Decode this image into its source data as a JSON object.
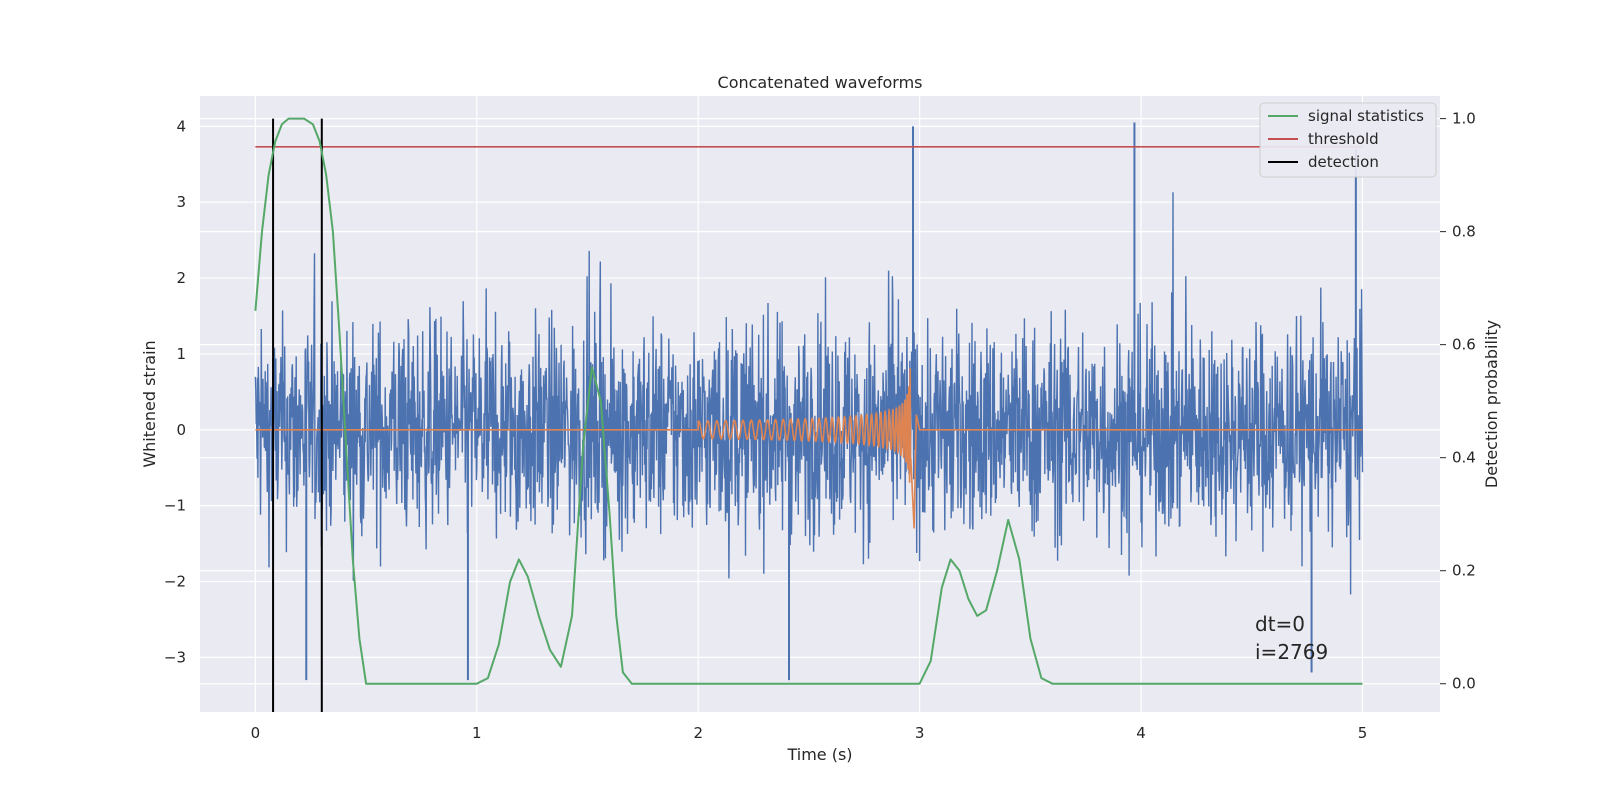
{
  "chart_data": {
    "type": "line",
    "title": "Concatenated waveforms",
    "xlabel": "Time (s)",
    "ylabel": "Whitened strain",
    "y2label": "Detection probability",
    "xlim": [
      -0.25,
      5.35
    ],
    "ylim": [
      -3.72,
      4.4
    ],
    "y2lim": [
      -0.05,
      1.04
    ],
    "xticks": [
      0,
      1,
      2,
      3,
      4,
      5
    ],
    "xtick_labels": [
      "0",
      "1",
      "2",
      "3",
      "4",
      "5"
    ],
    "yticks": [
      4,
      3,
      2,
      1,
      0,
      -1,
      -2,
      -3
    ],
    "ytick_labels": [
      "4",
      "3",
      "2",
      "1",
      "0",
      "−1",
      "−2",
      "−3"
    ],
    "y2ticks": [
      1.0,
      0.8,
      0.6,
      0.4,
      0.2,
      0.0
    ],
    "y2tick_labels": [
      "1.0",
      "0.8",
      "0.6",
      "0.4",
      "0.2",
      "0.0"
    ],
    "grid": true,
    "legend_position": "top-right",
    "legend": [
      "signal statistics",
      "threshold",
      "detection"
    ],
    "colors": {
      "strain": "#4c72b0",
      "injection": "#dd8452",
      "signal": "#55a868",
      "threshold": "#c44e52",
      "detection": "#000000",
      "background": "#eaeaf2",
      "grid": "#ffffff"
    },
    "series": [
      {
        "name": "signal statistics",
        "axis": "right",
        "x": [
          0.0,
          0.03,
          0.06,
          0.09,
          0.12,
          0.15,
          0.18,
          0.22,
          0.26,
          0.29,
          0.32,
          0.35,
          0.38,
          0.41,
          0.44,
          0.47,
          0.5,
          0.6,
          0.8,
          1.0,
          1.05,
          1.1,
          1.15,
          1.19,
          1.23,
          1.28,
          1.33,
          1.38,
          1.43,
          1.48,
          1.52,
          1.56,
          1.6,
          1.63,
          1.66,
          1.7,
          2.0,
          2.5,
          2.9,
          3.0,
          3.05,
          3.1,
          3.14,
          3.18,
          3.22,
          3.26,
          3.3,
          3.35,
          3.4,
          3.45,
          3.5,
          3.55,
          3.6,
          3.9,
          4.4,
          5.0
        ],
        "values": [
          0.66,
          0.8,
          0.9,
          0.96,
          0.99,
          1.0,
          1.0,
          1.0,
          0.99,
          0.96,
          0.9,
          0.8,
          0.62,
          0.42,
          0.22,
          0.08,
          0.0,
          0.0,
          0.0,
          0.0,
          0.01,
          0.07,
          0.18,
          0.22,
          0.19,
          0.12,
          0.06,
          0.03,
          0.12,
          0.42,
          0.56,
          0.5,
          0.3,
          0.12,
          0.02,
          0.0,
          0.0,
          0.0,
          0.0,
          0.0,
          0.04,
          0.17,
          0.22,
          0.2,
          0.15,
          0.12,
          0.13,
          0.2,
          0.29,
          0.22,
          0.08,
          0.01,
          0.0,
          0.0,
          0.0,
          0.0
        ]
      },
      {
        "name": "threshold",
        "axis": "right",
        "x": [
          0.0,
          5.0
        ],
        "values": [
          0.95,
          0.95
        ]
      },
      {
        "name": "detection",
        "axis": "right",
        "x": [
          0.08,
          0.3
        ],
        "values": [
          1.0,
          1.0
        ]
      },
      {
        "axis": "left",
        "kind": "strain-noise",
        "x_range": [
          0.0,
          5.0
        ],
        "envelope": [
          -2.1,
          2.2
        ],
        "spike_x": [
          2.97,
          3.97,
          4.97,
          0.23,
          0.96,
          2.41,
          4.77
        ],
        "spike_y": [
          4.0,
          4.05,
          3.7,
          -3.3,
          -3.3,
          -3.3,
          -3.2
        ]
      },
      {
        "axis": "left",
        "kind": "chirp",
        "x_range": [
          2.0,
          3.0
        ],
        "peak_x": 2.96,
        "peak_amplitude": 0.82
      }
    ],
    "annotations": [
      "dt=0",
      "i=2769"
    ]
  }
}
